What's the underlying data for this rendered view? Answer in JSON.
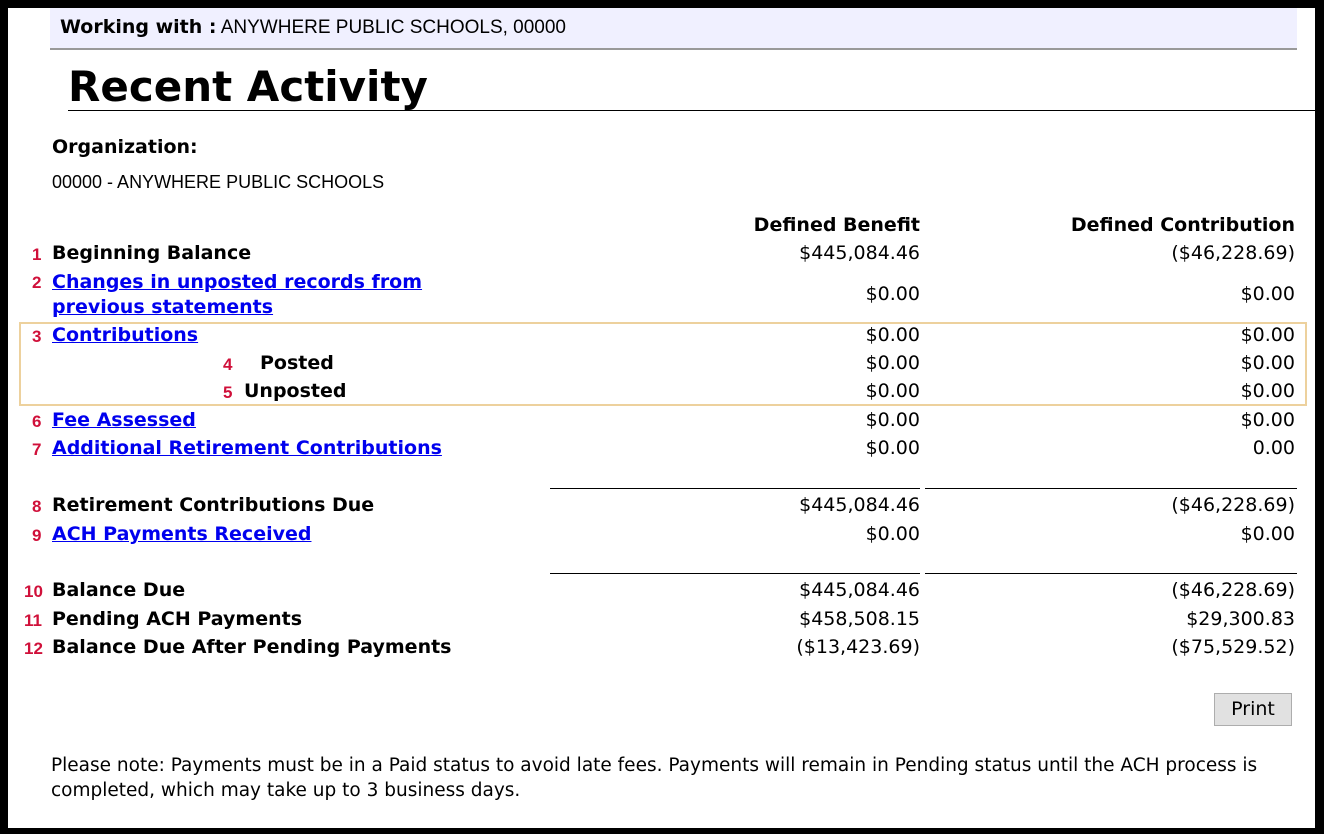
{
  "working_with": {
    "label": "Working with :",
    "value": "ANYWHERE PUBLIC SCHOOLS, 00000"
  },
  "title": "Recent Activity",
  "organization": {
    "label": "Organization:",
    "value": "00000 - ANYWHERE PUBLIC SCHOOLS"
  },
  "columns": {
    "db": "Defined Benefit",
    "dc": "Defined Contribution"
  },
  "rows": [
    {
      "num": "1",
      "label": "Beginning Balance",
      "db": "$445,084.46",
      "dc": "($46,228.69)"
    },
    {
      "num": "2",
      "label": "Changes in unposted records from",
      "label2": "previous statements",
      "db": "$0.00",
      "dc": "$0.00"
    },
    {
      "num": "3",
      "label": "Contributions",
      "db": "$0.00",
      "dc": "$0.00"
    },
    {
      "num": "4",
      "label": "Posted",
      "db": "$0.00",
      "dc": "$0.00"
    },
    {
      "num": "5",
      "label": "Unposted",
      "db": "$0.00",
      "dc": "$0.00"
    },
    {
      "num": "6",
      "label": "Fee Assessed",
      "db": "$0.00",
      "dc": "$0.00"
    },
    {
      "num": "7",
      "label": "Additional Retirement Contributions",
      "db": "$0.00",
      "dc": "0.00"
    },
    {
      "num": "8",
      "label": "Retirement Contributions Due",
      "db": "$445,084.46",
      "dc": "($46,228.69)"
    },
    {
      "num": "9",
      "label": "ACH Payments Received",
      "db": "$0.00",
      "dc": "$0.00"
    },
    {
      "num": "10",
      "label": "Balance Due",
      "db": "$445,084.46",
      "dc": "($46,228.69)"
    },
    {
      "num": "11",
      "label": "Pending ACH Payments",
      "db": "$458,508.15",
      "dc": "$29,300.83"
    },
    {
      "num": "12",
      "label": "Balance Due After Pending Payments",
      "db": "($13,423.69)",
      "dc": "($75,529.52)"
    }
  ],
  "print_label": "Print",
  "note": "Please note: Payments must be in a Paid status to avoid late fees. Payments will remain in Pending status until the ACH process is completed, which may take up to 3 business days.",
  "colors": {
    "link": "#0000ee",
    "row_number": "#d0103a",
    "highlight_border": "#edd19d",
    "header_bg": "#f0f0ff"
  }
}
